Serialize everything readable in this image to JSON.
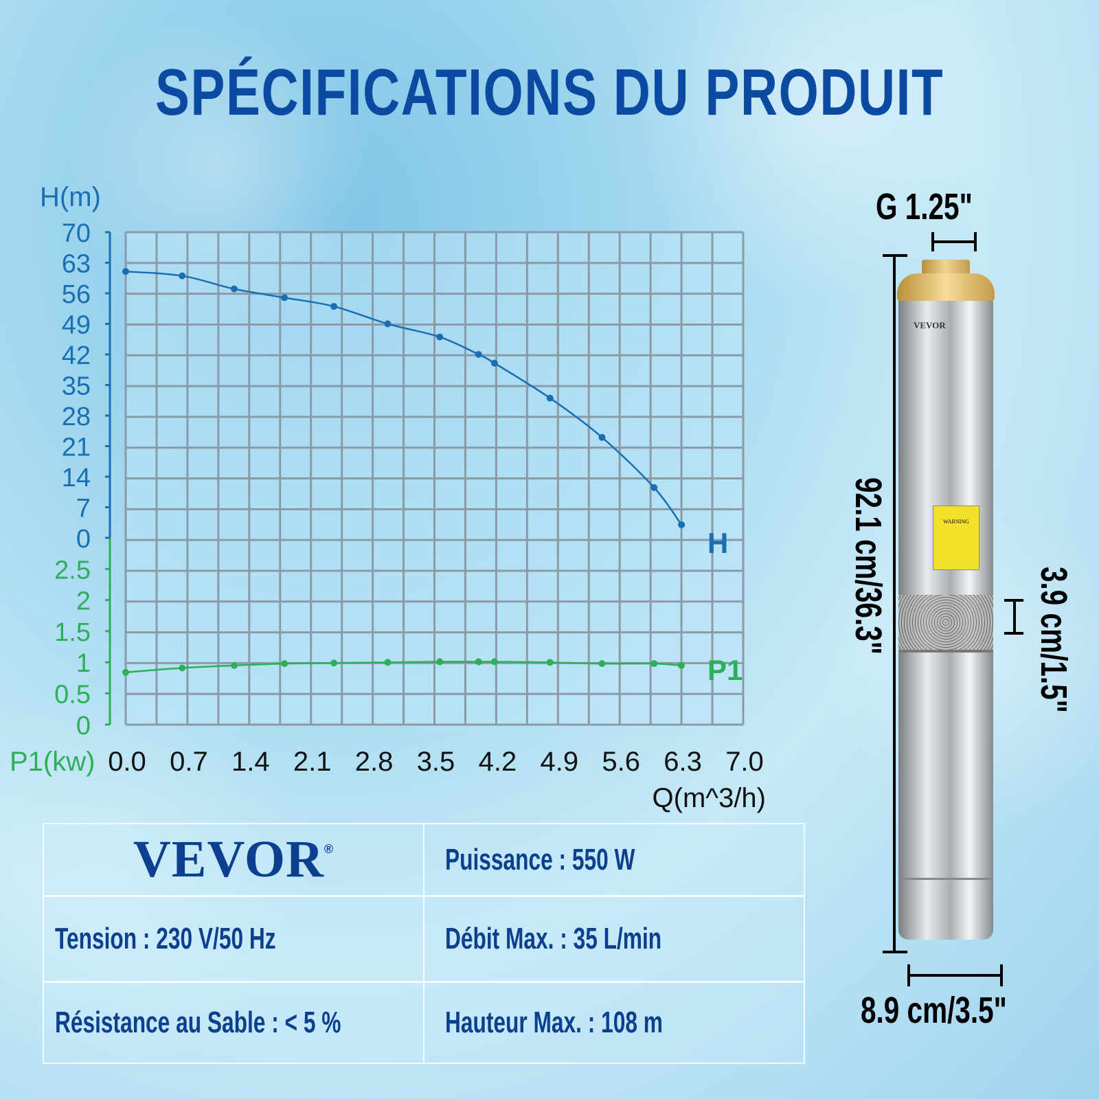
{
  "title": "SPÉCIFICATIONS DU PRODUIT",
  "colors": {
    "title": "#0a4aa0",
    "h_series": "#1a6fb3",
    "p1_series": "#2fae5a",
    "grid": "#8a9aa6",
    "text": "#0d3f8f"
  },
  "chart_data": {
    "type": "line",
    "xlabel": "Q(m^3/h)",
    "x_ticks": [
      "0.0",
      "0.7",
      "1.4",
      "2.1",
      "2.8",
      "3.5",
      "4.2",
      "4.9",
      "5.6",
      "6.3",
      "7.0"
    ],
    "xlim": [
      0,
      7
    ],
    "grid": true,
    "axes": [
      {
        "label": "H(m)",
        "ylim": [
          0,
          70
        ],
        "ticks": [
          "70",
          "63",
          "56",
          "49",
          "42",
          "35",
          "28",
          "21",
          "14",
          "7",
          "0"
        ],
        "color": "#1a6fb3"
      },
      {
        "label": "P1(kw)",
        "ylim": [
          0,
          2.5
        ],
        "ticks": [
          "2.5",
          "2",
          "1.5",
          "1",
          "0.5",
          "0"
        ],
        "color": "#2fae5a"
      }
    ],
    "series": [
      {
        "name": "H",
        "axis": 0,
        "x": [
          0,
          0.64,
          1.23,
          1.8,
          2.36,
          2.97,
          3.56,
          4.0,
          4.18,
          4.81,
          5.4,
          5.99,
          6.3
        ],
        "values": [
          61,
          60,
          57,
          55,
          53,
          49,
          46,
          42,
          40,
          32,
          23,
          11.5,
          3
        ]
      },
      {
        "name": "P1",
        "axis": 1,
        "x": [
          0,
          0.64,
          1.23,
          1.8,
          2.36,
          2.97,
          3.56,
          4.0,
          4.18,
          4.81,
          5.4,
          5.99,
          6.3
        ],
        "values": [
          0.84,
          0.91,
          0.95,
          0.98,
          0.99,
          1.0,
          1.01,
          1.01,
          1.01,
          1.0,
          0.98,
          0.98,
          0.95
        ]
      }
    ]
  },
  "specs": {
    "brand": "VEVOR",
    "brand_mark": "®",
    "items": [
      "Puissance : 550 W",
      "Tension : 230 V/50 Hz",
      "Débit Max. : 35 L/min",
      "Résistance au Sable : < 5 %",
      "Hauteur Max. : 108 m"
    ]
  },
  "dimensions": {
    "outlet": "G 1.25\"",
    "length": "92.1 cm/36.3\"",
    "inlet": "3.9 cm/1.5\"",
    "diameter": "8.9 cm/3.5\""
  },
  "pump": {
    "brand": "VEVOR",
    "warning": "WARNING"
  }
}
